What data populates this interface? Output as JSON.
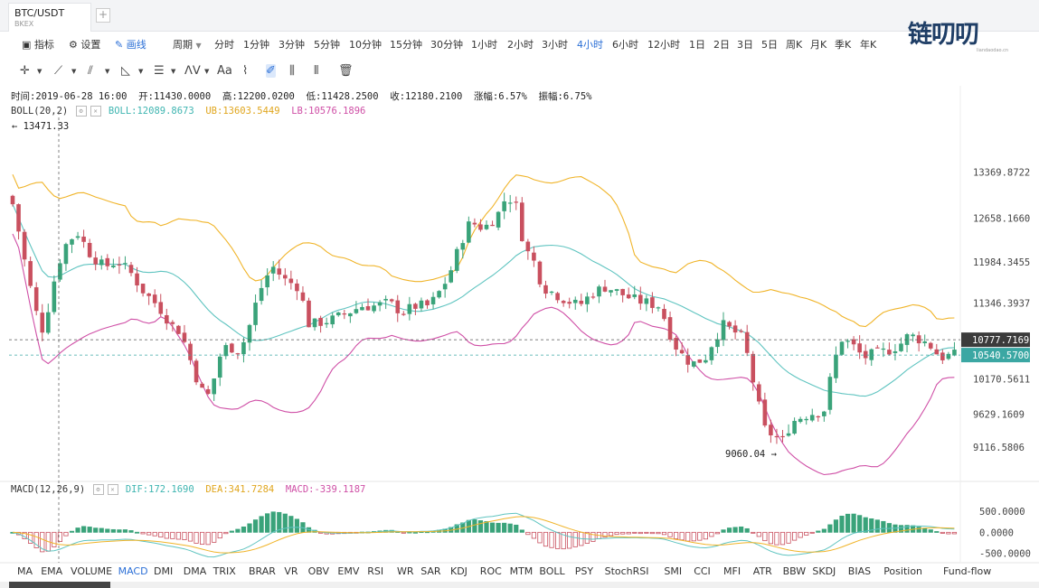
{
  "tab": {
    "symbol": "BTC/USDT",
    "exchange": "BKEX",
    "add": "+"
  },
  "logo": {
    "text": "链叨叨",
    "sub": "liandaodao.cn"
  },
  "toolbar": {
    "indicators": "指标",
    "settings": "设置",
    "draw": "画线",
    "period_label": "周期",
    "periods": [
      "分时",
      "1分钟",
      "3分钟",
      "5分钟",
      "10分钟",
      "15分钟",
      "30分钟",
      "1小时",
      "2小时",
      "3小时",
      "4小时",
      "6小时",
      "12小时",
      "1日",
      "2日",
      "3日",
      "5日",
      "周K",
      "月K",
      "季K",
      "年K"
    ],
    "active_period": "4小时"
  },
  "info": {
    "time": "时间:2019-06-28 16:00",
    "open": "开:11430.0000",
    "high": "高:12200.0200",
    "low": "低:11428.2500",
    "close": "收:12180.2100",
    "change": "涨幅:6.57%",
    "amplitude": "振幅:6.75%"
  },
  "boll": {
    "name": "BOLL(20,2)",
    "mid": "BOLL:12089.8673",
    "ub": "UB:13603.5449",
    "lb": "LB:10576.1896"
  },
  "macd": {
    "name": "MACD(12,26,9)",
    "dif": "DIF:172.1690",
    "dea": "DEA:341.7284",
    "macd": "MACD:-339.1187"
  },
  "colors": {
    "up": "#3aa37a",
    "down": "#c9505f",
    "mid": "#5fc4c0",
    "ub": "#f0b429",
    "lb": "#cf4fa6",
    "accent": "#2b6fd6"
  },
  "chart_data": {
    "type": "candlestick",
    "y_ticks": [
      "13369.8722",
      "12658.1660",
      "11984.3455",
      "11346.3937",
      "10170.5611",
      "9629.1609",
      "9116.5806"
    ],
    "ylim": [
      8600,
      14300
    ],
    "max_label": "← 13471.33",
    "min_label": "9060.04 →",
    "price_tags": [
      "10777.7169",
      "10540.5700"
    ],
    "macd_ticks": [
      "500.0000",
      "0.0000",
      "-500.0000"
    ],
    "macd_ylim": [
      -700,
      800
    ]
  },
  "indicator_bar": [
    "MA",
    "EMA",
    "VOLUME",
    "MACD",
    "DMI",
    "DMA",
    "TRIX",
    "BRAR",
    "VR",
    "OBV",
    "EMV",
    "RSI",
    "WR",
    "SAR",
    "KDJ",
    "ROC",
    "MTM",
    "BOLL",
    "PSY",
    "StochRSI",
    "SMI",
    "CCI",
    "MFI",
    "ATR",
    "BBW",
    "SKDJ",
    "BIAS",
    "Position",
    "Fund-flow"
  ],
  "active_indicator": "MACD"
}
